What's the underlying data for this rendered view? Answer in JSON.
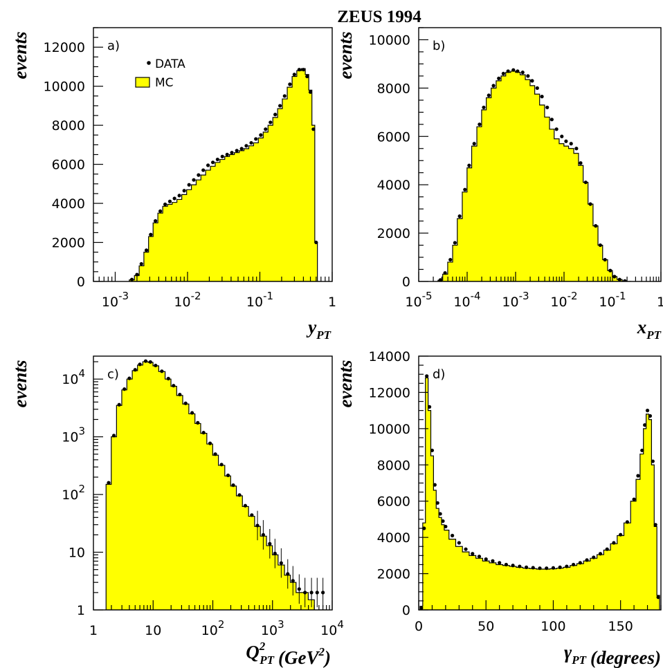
{
  "figure_title": "ZEUS 1994",
  "colors": {
    "mc_fill": "#ffff00",
    "data_marker": "#000000"
  },
  "chart_data": [
    {
      "id": "a",
      "type": "histogram",
      "panel_label": "a)",
      "xlabel": "y",
      "xlabel_sub": "PT",
      "ylabel": "events",
      "xscale": "log",
      "yscale": "linear",
      "xlim": [
        0.0005,
        1
      ],
      "ylim": [
        0,
        13000
      ],
      "xticks": [
        {
          "v": 0.001,
          "b": "10",
          "e": "-3"
        },
        {
          "v": 0.01,
          "b": "10",
          "e": "-2"
        },
        {
          "v": 0.1,
          "b": "10",
          "e": "-1"
        },
        {
          "v": 1,
          "b": "1",
          "e": ""
        }
      ],
      "yticks": [
        {
          "v": 0,
          "t": "0"
        },
        {
          "v": 2000,
          "t": "2000"
        },
        {
          "v": 4000,
          "t": "4000"
        },
        {
          "v": 6000,
          "t": "6000"
        },
        {
          "v": 8000,
          "t": "8000"
        },
        {
          "v": 10000,
          "t": "10000"
        },
        {
          "v": 12000,
          "t": "12000"
        }
      ],
      "legend": [
        {
          "label": "DATA",
          "marker": "dot"
        },
        {
          "label": "MC",
          "marker": "box"
        }
      ],
      "x": [
        0.0017,
        0.002,
        0.0023,
        0.0027,
        0.0031,
        0.0036,
        0.0042,
        0.0049,
        0.0057,
        0.0066,
        0.0077,
        0.009,
        0.0105,
        0.0122,
        0.0142,
        0.0165,
        0.0192,
        0.0224,
        0.026,
        0.0303,
        0.0353,
        0.041,
        0.048,
        0.056,
        0.065,
        0.076,
        0.088,
        0.103,
        0.12,
        0.14,
        0.163,
        0.19,
        0.22,
        0.26,
        0.3,
        0.35,
        0.4,
        0.45,
        0.5,
        0.55,
        0.6,
        0.65
      ],
      "mc": [
        80,
        300,
        800,
        1500,
        2300,
        3000,
        3500,
        3850,
        3950,
        4050,
        4200,
        4450,
        4700,
        4950,
        5200,
        5450,
        5700,
        5900,
        6100,
        6250,
        6400,
        6500,
        6600,
        6700,
        6800,
        6950,
        7100,
        7350,
        7650,
        8000,
        8400,
        8850,
        9350,
        9950,
        10500,
        10800,
        10900,
        10600,
        9800,
        8000,
        2000,
        0
      ],
      "data": [
        100,
        350,
        900,
        1600,
        2400,
        3100,
        3600,
        3950,
        4100,
        4250,
        4400,
        4650,
        4950,
        5200,
        5450,
        5700,
        5950,
        6100,
        6250,
        6400,
        6500,
        6600,
        6700,
        6800,
        6950,
        7100,
        7300,
        7500,
        7800,
        8150,
        8550,
        9000,
        9500,
        10100,
        10600,
        10850,
        10850,
        10500,
        9700,
        7800,
        2000,
        0
      ]
    },
    {
      "id": "b",
      "type": "histogram",
      "panel_label": "b)",
      "xlabel": "x",
      "xlabel_sub": "PT",
      "ylabel": "events",
      "xscale": "log",
      "yscale": "linear",
      "xlim": [
        1e-05,
        1
      ],
      "ylim": [
        0,
        10500
      ],
      "xticks": [
        {
          "v": 1e-05,
          "b": "10",
          "e": "-5"
        },
        {
          "v": 0.0001,
          "b": "10",
          "e": "-4"
        },
        {
          "v": 0.001,
          "b": "10",
          "e": "-3"
        },
        {
          "v": 0.01,
          "b": "10",
          "e": "-2"
        },
        {
          "v": 0.1,
          "b": "10",
          "e": "-1"
        },
        {
          "v": 1,
          "b": "1",
          "e": ""
        }
      ],
      "yticks": [
        {
          "v": 0,
          "t": "0"
        },
        {
          "v": 2000,
          "t": "2000"
        },
        {
          "v": 4000,
          "t": "4000"
        },
        {
          "v": 6000,
          "t": "6000"
        },
        {
          "v": 8000,
          "t": "8000"
        },
        {
          "v": 10000,
          "t": "10000"
        }
      ],
      "x": [
        2.8e-05,
        3.5e-05,
        4.5e-05,
        5.6e-05,
        7e-05,
        9e-05,
        0.00011,
        0.00014,
        0.00018,
        0.00022,
        0.00028,
        0.00035,
        0.00045,
        0.00056,
        0.0007,
        0.0009,
        0.0011,
        0.0014,
        0.0018,
        0.0022,
        0.0028,
        0.0035,
        0.0045,
        0.0056,
        0.007,
        0.009,
        0.011,
        0.014,
        0.018,
        0.022,
        0.028,
        0.035,
        0.045,
        0.056,
        0.07,
        0.09,
        0.11,
        0.14,
        0.18,
        0.22
      ],
      "mc": [
        50,
        300,
        800,
        1500,
        2600,
        3700,
        4700,
        5600,
        6400,
        7100,
        7600,
        8000,
        8300,
        8500,
        8650,
        8700,
        8650,
        8550,
        8350,
        8100,
        7750,
        7300,
        6800,
        6300,
        5900,
        5700,
        5600,
        5500,
        5300,
        4800,
        4100,
        3200,
        2300,
        1500,
        900,
        450,
        200,
        80,
        20,
        0
      ],
      "data": [
        60,
        350,
        900,
        1600,
        2700,
        3800,
        4800,
        5700,
        6500,
        7200,
        7700,
        8100,
        8400,
        8600,
        8700,
        8750,
        8700,
        8650,
        8500,
        8300,
        8000,
        7650,
        7200,
        6700,
        6300,
        6000,
        5800,
        5700,
        5500,
        4900,
        4100,
        3200,
        2300,
        1500,
        900,
        450,
        200,
        80,
        20,
        0
      ]
    },
    {
      "id": "c",
      "type": "histogram",
      "panel_label": "c)",
      "xlabel": "Q",
      "xlabel_sub": "PT",
      "xlabel_sup": "2",
      "xlabel_units": "(GeV",
      "xlabel_units_sup": "2",
      "xlabel_units_end": ")",
      "ylabel": "events",
      "xscale": "log",
      "yscale": "log",
      "xlim": [
        1,
        10000
      ],
      "ylim": [
        1,
        25000
      ],
      "xticks": [
        {
          "v": 1,
          "b": "1",
          "e": ""
        },
        {
          "v": 10,
          "b": "10",
          "e": ""
        },
        {
          "v": 100,
          "b": "10",
          "e": "2"
        },
        {
          "v": 1000,
          "b": "10",
          "e": "3"
        },
        {
          "v": 10000,
          "b": "10",
          "e": "4"
        }
      ],
      "yticks": [
        {
          "v": 1,
          "b": "1",
          "e": ""
        },
        {
          "v": 10,
          "b": "10",
          "e": ""
        },
        {
          "v": 100,
          "b": "10",
          "e": "2"
        },
        {
          "v": 1000,
          "b": "10",
          "e": "3"
        },
        {
          "v": 10000,
          "b": "10",
          "e": "4"
        }
      ],
      "x": [
        1.8,
        2.2,
        2.7,
        3.3,
        4,
        5,
        6,
        7.5,
        9,
        11,
        14,
        18,
        22,
        28,
        35,
        45,
        56,
        70,
        90,
        110,
        140,
        180,
        220,
        280,
        350,
        450,
        560,
        700,
        900,
        1100,
        1400,
        1800,
        2200,
        2800,
        3500,
        4500,
        5600,
        7000
      ],
      "mc": [
        150,
        1000,
        3500,
        6500,
        10000,
        14000,
        17500,
        20000,
        19500,
        17000,
        13500,
        10000,
        7500,
        5200,
        3700,
        2500,
        1700,
        1150,
        750,
        480,
        320,
        210,
        140,
        95,
        62,
        42,
        28,
        19,
        13,
        9,
        6,
        4,
        3,
        2,
        2,
        1.5,
        1,
        1
      ],
      "data": [
        160,
        1050,
        3600,
        6700,
        10300,
        14500,
        18000,
        20500,
        19800,
        17200,
        13700,
        10200,
        7700,
        5400,
        3800,
        2600,
        1750,
        1180,
        770,
        500,
        330,
        215,
        145,
        98,
        64,
        44,
        29,
        20,
        14,
        9.5,
        6.5,
        4.2,
        3.2,
        2.3,
        2,
        2,
        2,
        2
      ]
    },
    {
      "id": "d",
      "type": "histogram",
      "panel_label": "d)",
      "xlabel": "γ",
      "xlabel_sub": "PT",
      "xlabel_units": "(degrees)",
      "ylabel": "events",
      "xscale": "linear",
      "yscale": "linear",
      "xlim": [
        0,
        180
      ],
      "ylim": [
        0,
        14000
      ],
      "xticks": [
        {
          "v": 0,
          "t": "0"
        },
        {
          "v": 50,
          "t": "50"
        },
        {
          "v": 100,
          "t": "100"
        },
        {
          "v": 150,
          "t": "150"
        }
      ],
      "yticks": [
        {
          "v": 0,
          "t": "0"
        },
        {
          "v": 2000,
          "t": "2000"
        },
        {
          "v": 4000,
          "t": "4000"
        },
        {
          "v": 6000,
          "t": "6000"
        },
        {
          "v": 8000,
          "t": "8000"
        },
        {
          "v": 10000,
          "t": "10000"
        },
        {
          "v": 12000,
          "t": "12000"
        },
        {
          "v": 14000,
          "t": "14000"
        }
      ],
      "x": [
        2,
        4,
        6,
        8,
        10,
        12,
        14,
        16,
        18,
        20,
        25,
        30,
        35,
        40,
        45,
        50,
        55,
        60,
        65,
        70,
        75,
        80,
        85,
        90,
        95,
        100,
        105,
        110,
        115,
        120,
        125,
        130,
        135,
        140,
        145,
        150,
        155,
        160,
        163,
        166,
        168,
        170,
        172,
        174,
        176,
        178
      ],
      "mc": [
        200,
        4800,
        12800,
        11000,
        8500,
        6600,
        5600,
        5100,
        4700,
        4400,
        3900,
        3500,
        3200,
        3000,
        2850,
        2700,
        2600,
        2500,
        2450,
        2400,
        2350,
        2300,
        2280,
        2250,
        2250,
        2270,
        2300,
        2350,
        2450,
        2550,
        2700,
        2850,
        3050,
        3300,
        3650,
        4100,
        4800,
        6000,
        7200,
        8600,
        10000,
        10800,
        10500,
        8000,
        4600,
        800
      ],
      "data": [
        100,
        4500,
        12900,
        11200,
        8800,
        6900,
        5900,
        5300,
        4900,
        4600,
        4100,
        3700,
        3350,
        3100,
        2950,
        2800,
        2700,
        2600,
        2500,
        2450,
        2400,
        2350,
        2330,
        2300,
        2300,
        2320,
        2350,
        2400,
        2500,
        2600,
        2750,
        2900,
        3100,
        3350,
        3700,
        4150,
        4850,
        6100,
        7400,
        8800,
        10200,
        11000,
        10700,
        8200,
        4700,
        700
      ]
    }
  ]
}
